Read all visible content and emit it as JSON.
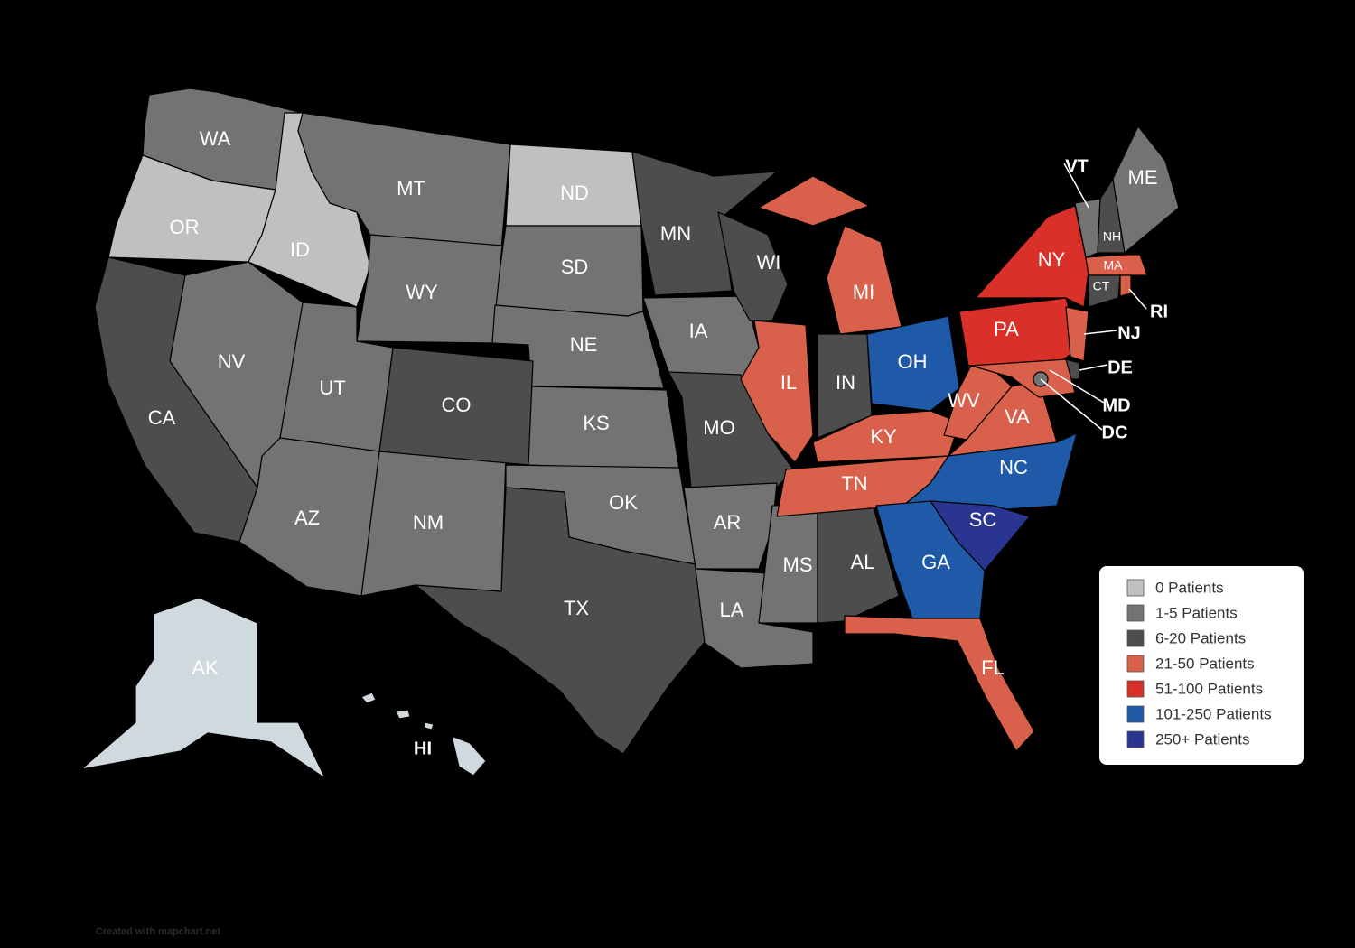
{
  "states": [
    {
      "label": "WA",
      "color": "#737373"
    },
    {
      "label": "OR",
      "color": "#c0c0c0"
    },
    {
      "label": "ID",
      "color": "#c0c0c0"
    },
    {
      "label": "MT",
      "color": "#737373"
    },
    {
      "label": "ND",
      "color": "#c0c0c0"
    },
    {
      "label": "SD",
      "color": "#737373"
    },
    {
      "label": "WY",
      "color": "#737373"
    },
    {
      "label": "NE",
      "color": "#737373"
    },
    {
      "label": "KS",
      "color": "#737373"
    },
    {
      "label": "OK",
      "color": "#737373"
    },
    {
      "label": "TX",
      "color": "#4d4d4d"
    },
    {
      "label": "NM",
      "color": "#737373"
    },
    {
      "label": "CO",
      "color": "#4d4d4d"
    },
    {
      "label": "UT",
      "color": "#737373"
    },
    {
      "label": "AZ",
      "color": "#737373"
    },
    {
      "label": "NV",
      "color": "#737373"
    },
    {
      "label": "CA",
      "color": "#4d4d4d"
    },
    {
      "label": "MN",
      "color": "#4d4d4d"
    },
    {
      "label": "IA",
      "color": "#737373"
    },
    {
      "label": "MO",
      "color": "#4d4d4d"
    },
    {
      "label": "AR",
      "color": "#737373"
    },
    {
      "label": "LA",
      "color": "#737373"
    },
    {
      "label": "MS",
      "color": "#737373"
    },
    {
      "label": "AL",
      "color": "#4d4d4d"
    },
    {
      "label": "WI",
      "color": "#4d4d4d"
    },
    {
      "label": "IL",
      "color": "#d9604a"
    },
    {
      "label": "IN",
      "color": "#4d4d4d"
    },
    {
      "label": "MI",
      "color": "#d9604a"
    },
    {
      "label": "OH",
      "color": "#1f5aa8"
    },
    {
      "label": "KY",
      "color": "#d9604a"
    },
    {
      "label": "TN",
      "color": "#d9604a"
    },
    {
      "label": "WV",
      "color": "#d9604a"
    },
    {
      "label": "VA",
      "color": "#d9604a"
    },
    {
      "label": "NC",
      "color": "#1f5aa8"
    },
    {
      "label": "SC",
      "color": "#2a3592"
    },
    {
      "label": "GA",
      "color": "#1f5aa8"
    },
    {
      "label": "FL",
      "color": "#d9604a"
    },
    {
      "label": "PA",
      "color": "#d9302a"
    },
    {
      "label": "NY",
      "color": "#d9302a"
    },
    {
      "label": "NJ",
      "color": "#d9604a"
    },
    {
      "label": "DE",
      "color": "#4d4d4d"
    },
    {
      "label": "MD",
      "color": "#d9604a"
    },
    {
      "label": "DC",
      "color": "#737373"
    },
    {
      "label": "VT",
      "color": "#737373"
    },
    {
      "label": "NH",
      "color": "#4d4d4d"
    },
    {
      "label": "ME",
      "color": "#737373"
    },
    {
      "label": "MA",
      "color": "#d9604a"
    },
    {
      "label": "CT",
      "color": "#4d4d4d"
    },
    {
      "label": "RI",
      "color": "#d9604a"
    },
    {
      "label": "AK",
      "color": "#d0d9dd"
    },
    {
      "label": "HI",
      "color": "#d0d9dd"
    }
  ],
  "legend": {
    "items": [
      {
        "label": "0 Patients",
        "color": "#c0c0c0"
      },
      {
        "label": "1-5 Patients",
        "color": "#737373"
      },
      {
        "label": "6-20 Patients",
        "color": "#4d4d4d"
      },
      {
        "label": "21-50 Patients",
        "color": "#d9604a"
      },
      {
        "label": "51-100 Patients",
        "color": "#d9302a"
      },
      {
        "label": "101-250 Patients",
        "color": "#1f5aa8"
      },
      {
        "label": "250+ Patients",
        "color": "#2a3592"
      }
    ]
  },
  "credit": "Created with mapchart.net"
}
